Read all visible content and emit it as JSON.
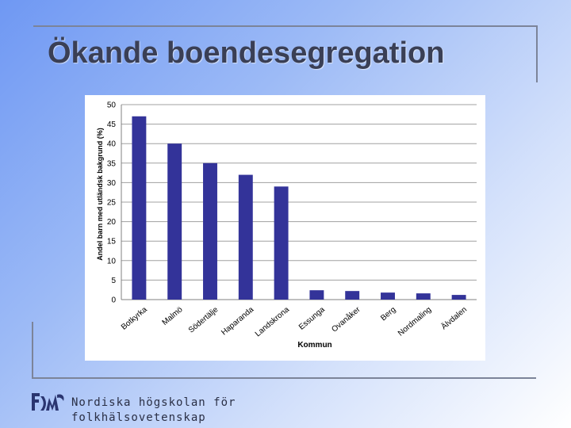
{
  "slide": {
    "title": "Ökande boendesegregation"
  },
  "footer": {
    "org_line1": "Nordiska högskolan för",
    "org_line2": "folkhälsovetenskap"
  },
  "colors": {
    "bar": "#333399",
    "grid": "#a0a0a0",
    "title": "#3a3f55"
  },
  "chart_data": {
    "type": "bar",
    "title": "",
    "xlabel": "Kommun",
    "ylabel": "Andel barn med utländsk bakgrund (%)",
    "ylim": [
      0,
      50
    ],
    "yticks": [
      0,
      5,
      10,
      15,
      20,
      25,
      30,
      35,
      40,
      45,
      50
    ],
    "grid": true,
    "legend": "none",
    "categories": [
      "Botkyrka",
      "Malmö",
      "Södertälje",
      "Haparanda",
      "Landskrona",
      "Essunga",
      "Ovanåker",
      "Berg",
      "Nordmaling",
      "Älvdalen"
    ],
    "values": [
      47,
      40,
      35,
      32,
      29,
      2.4,
      2.2,
      1.8,
      1.6,
      1.2
    ]
  }
}
